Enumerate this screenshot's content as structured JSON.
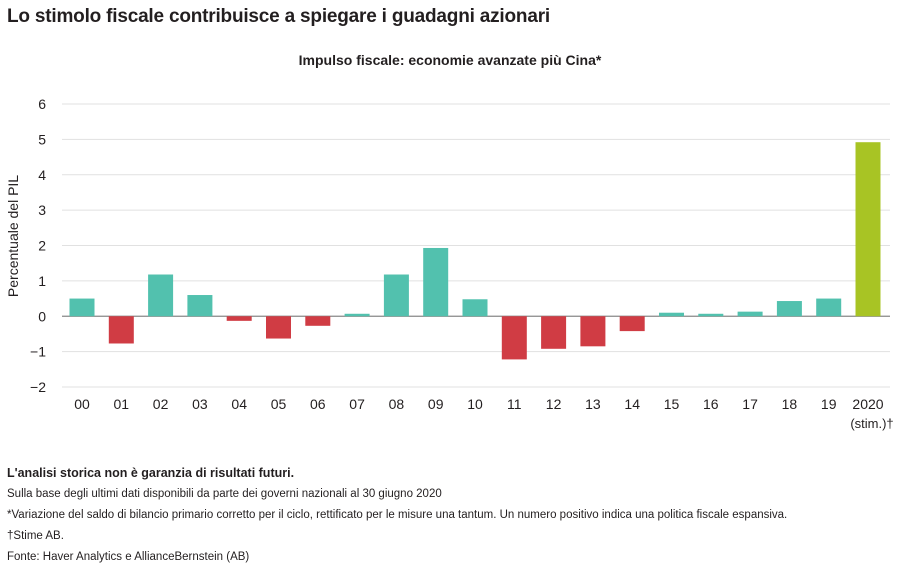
{
  "title": "Lo stimolo fiscale contribuisce a spiegare i guadagni azionari",
  "chart_data": {
    "type": "bar",
    "title": "Impulso fiscale: economie avanzate più Cina*",
    "xlabel": "",
    "ylabel": "Percentuale del PIL",
    "ylim": [
      -2,
      6
    ],
    "yticks": [
      -2,
      -1,
      0,
      1,
      2,
      3,
      4,
      5,
      6
    ],
    "ytick_labels": [
      "−2",
      "−1",
      "0",
      "1",
      "2",
      "3",
      "4",
      "5",
      "6"
    ],
    "categories": [
      "00",
      "01",
      "02",
      "03",
      "04",
      "05",
      "06",
      "07",
      "08",
      "09",
      "10",
      "11",
      "12",
      "13",
      "14",
      "15",
      "16",
      "17",
      "18",
      "19",
      "2020"
    ],
    "category_sublabels": {
      "2020": "(stim.)†"
    },
    "values": [
      0.5,
      -0.77,
      1.18,
      0.6,
      -0.13,
      -0.63,
      -0.27,
      0.07,
      1.18,
      1.93,
      0.48,
      -1.22,
      -0.92,
      -0.85,
      -0.42,
      0.1,
      0.07,
      0.13,
      0.43,
      0.5,
      4.92
    ],
    "grid": true,
    "colors": {
      "positive": "#52c1ae",
      "negative": "#d03c44",
      "estimate": "#a8c424",
      "grid": "#e1e1e1",
      "axis": "#888888",
      "text": "#231f20"
    }
  },
  "footer": {
    "disclaimer": "L'analisi storica non è garanzia di risultati futuri.",
    "notes": [
      "Sulla base degli ultimi dati disponibili da parte dei governi nazionali al 30 giugno 2020",
      "*Variazione del saldo di bilancio primario corretto per il ciclo, rettificato per le misure una tantum. Un numero positivo indica una politica fiscale espansiva.",
      "†Stime AB.",
      "Fonte: Haver Analytics e AllianceBernstein (AB)"
    ]
  }
}
